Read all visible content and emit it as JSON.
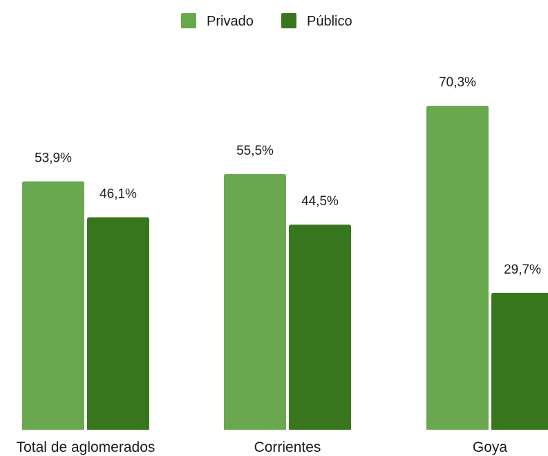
{
  "chart_data": {
    "type": "bar",
    "categories": [
      "Total de aglomerados",
      "Corrientes",
      "Goya"
    ],
    "series": [
      {
        "name": "Privado",
        "color": "#6aa84f",
        "values": [
          53.9,
          55.5,
          70.3
        ],
        "labels": [
          "53,9%",
          "55,5%",
          "70,3%"
        ]
      },
      {
        "name": "Público",
        "color": "#38761d",
        "values": [
          46.1,
          44.5,
          29.7
        ],
        "labels": [
          "46,1%",
          "44,5%",
          "29,7%"
        ]
      }
    ],
    "ylim": [
      0,
      100
    ],
    "grid": false,
    "legend_position": "top",
    "title": "",
    "xlabel": "",
    "ylabel": ""
  }
}
